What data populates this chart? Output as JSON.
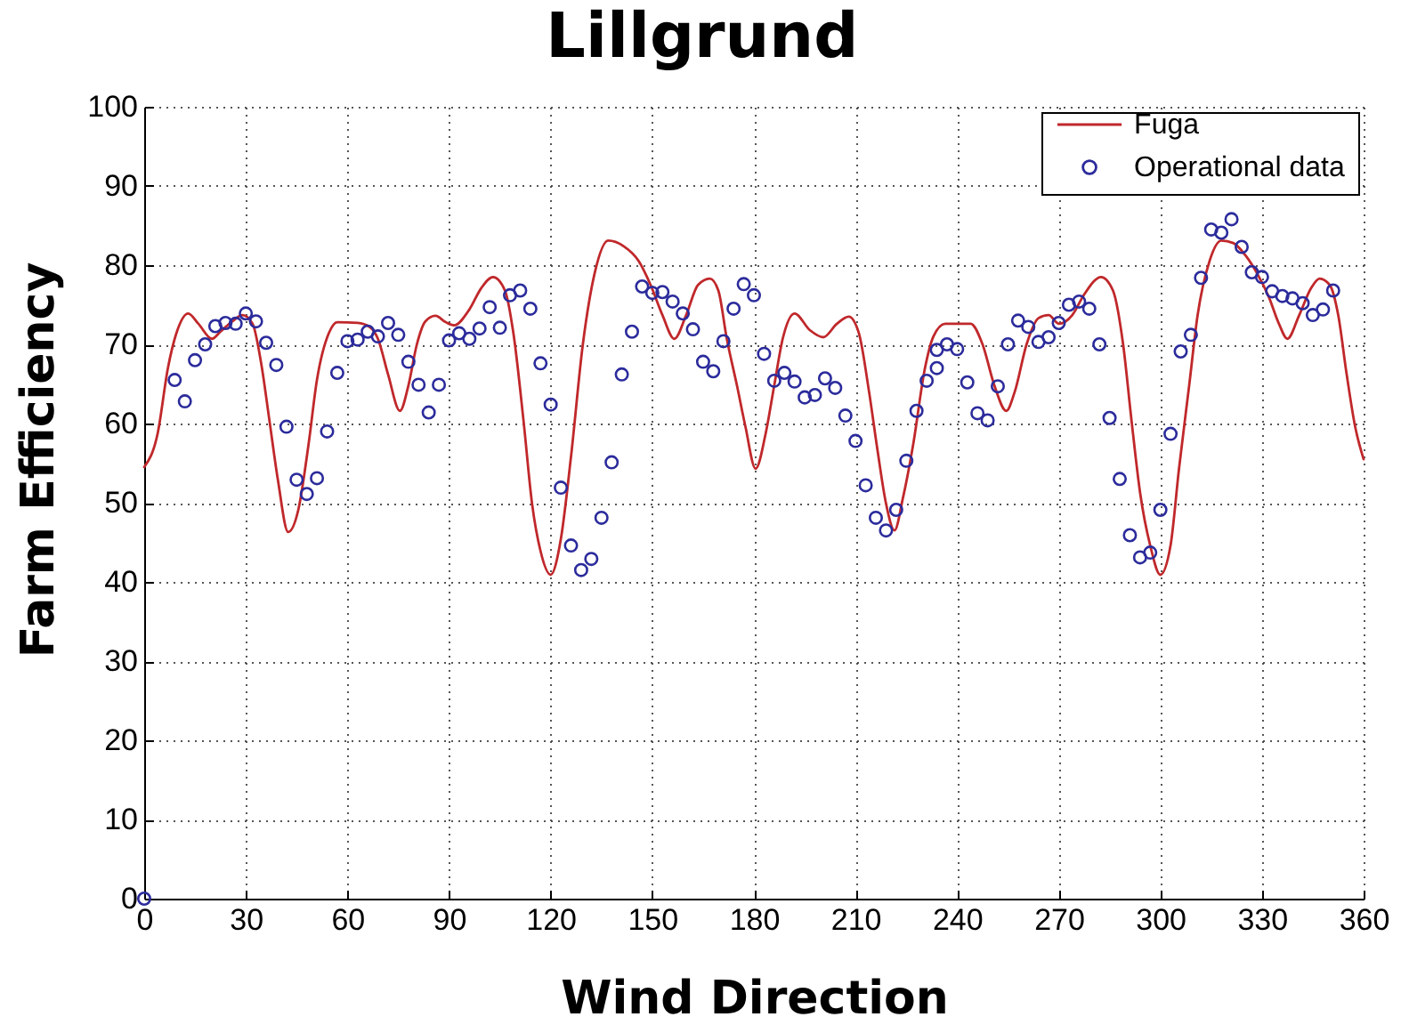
{
  "chart_data": {
    "type": "line",
    "title": "Lillgrund",
    "xlabel": "Wind Direction",
    "ylabel": "Farm Efficiency",
    "xlim": [
      0,
      360
    ],
    "xticks": [
      0,
      30,
      60,
      90,
      120,
      150,
      180,
      210,
      240,
      270,
      300,
      330,
      360
    ],
    "ylim": [
      0,
      100
    ],
    "yticks": [
      0,
      10,
      20,
      30,
      40,
      50,
      60,
      70,
      80,
      90,
      100
    ],
    "grid": true,
    "legend": "top right",
    "series": [
      {
        "name": "Fuga",
        "color": "#c0282b",
        "x": [
          0,
          4,
          7,
          9.5,
          13,
          16,
          20,
          22.5,
          26,
          29,
          32,
          34.5,
          37,
          39.5,
          42.5,
          45.5,
          48.5,
          51,
          54.5,
          57,
          63,
          66.5,
          69,
          72,
          75.5,
          78,
          80.5,
          83,
          86,
          89,
          91.5,
          96,
          99.5,
          103,
          106.5,
          109,
          112,
          114.5,
          117,
          120,
          123,
          126,
          129.5,
          133,
          137,
          141.5,
          146,
          149.5,
          153,
          156.5,
          160,
          163.5,
          167,
          169.5,
          172,
          175,
          177.5,
          180.5,
          183.5,
          186,
          188.5,
          192,
          196.5,
          200.5,
          204.5,
          208,
          211,
          214,
          216.5,
          219,
          221.5,
          224,
          227,
          230.5,
          233,
          236.5,
          240,
          244,
          247.5,
          251,
          254.5,
          257,
          260.5,
          264,
          267,
          270,
          274,
          277.5,
          282.5,
          286,
          289,
          291.5,
          294,
          297,
          300,
          303,
          305.5,
          308.5,
          311,
          314.5,
          318,
          321.5,
          325,
          328.5,
          332,
          335,
          337.5,
          341,
          344.5,
          347,
          350,
          352.5,
          355,
          357.5,
          360
        ],
        "values": [
          54.5,
          58.8,
          67,
          71.4,
          73.9,
          72.6,
          70.7,
          71.6,
          72.9,
          73.7,
          72.6,
          67.7,
          60.3,
          52.8,
          46.3,
          49.1,
          57.3,
          65.5,
          71.4,
          72.8,
          72.7,
          72.2,
          70.7,
          66.2,
          61.6,
          64.8,
          70,
          72.9,
          73.6,
          72.8,
          72.4,
          74.4,
          77.1,
          78.5,
          76.8,
          71.4,
          60.3,
          49.9,
          43.9,
          40.9,
          45.4,
          55.8,
          70,
          79,
          83.1,
          82.4,
          80.5,
          77.5,
          73.7,
          70.7,
          73.7,
          77.5,
          78.3,
          76.8,
          70.7,
          64.8,
          59.6,
          54.3,
          58.8,
          64.8,
          70.7,
          73.9,
          71.8,
          70.9,
          72.6,
          73.5,
          71.4,
          64,
          56.6,
          49.9,
          46.5,
          50.6,
          57.3,
          67,
          71,
          72.6,
          72.6,
          72.6,
          70,
          64.8,
          61.6,
          64,
          70,
          73.3,
          73.7,
          72.6,
          73.7,
          76.3,
          78.5,
          76.8,
          70,
          60.3,
          51.3,
          44.6,
          40.9,
          44.6,
          54.3,
          64.8,
          73.7,
          80.5,
          83.1,
          82.8,
          81.3,
          79,
          76,
          72.6,
          70.7,
          73.7,
          77.1,
          78.3,
          77.5,
          73.7,
          66.2,
          59.6,
          55.5
        ]
      },
      {
        "name": "Operational data",
        "type": "scatter",
        "marker": "circle",
        "color": "#2b2b9c",
        "x": [
          0,
          9,
          12,
          15,
          18,
          21,
          24,
          27,
          30,
          33,
          36,
          39,
          42,
          45,
          48,
          51,
          54,
          57,
          60,
          63,
          66,
          69,
          72,
          75,
          78,
          81,
          84,
          87,
          90,
          93,
          96,
          99,
          102,
          105,
          108,
          111,
          114,
          117,
          120,
          123,
          126,
          129,
          132,
          135,
          138,
          141,
          144,
          147,
          150,
          153,
          156,
          159,
          162,
          165,
          168,
          171,
          174,
          177,
          180,
          183,
          186,
          189,
          192,
          195,
          198,
          201,
          204,
          207,
          210,
          213,
          216,
          219,
          222,
          225,
          228,
          231,
          234,
          234,
          237,
          240,
          243,
          246,
          249,
          252,
          255,
          258,
          261,
          264,
          267,
          270,
          273,
          276,
          279,
          282,
          285,
          288,
          291,
          294,
          297,
          300,
          303,
          306,
          309,
          312,
          315,
          318,
          321,
          324,
          327,
          330,
          333,
          336,
          339,
          342,
          345,
          348,
          351
        ],
        "values": [
          0,
          65.5,
          62.8,
          68.0,
          70.0,
          72.3,
          72.7,
          72.6,
          73.9,
          72.9,
          70.2,
          67.4,
          59.6,
          52.9,
          51.1,
          53.1,
          59.0,
          66.4,
          70.4,
          70.6,
          71.6,
          71.0,
          72.7,
          71.2,
          67.8,
          64.9,
          61.4,
          64.9,
          70.5,
          71.4,
          70.7,
          72.0,
          74.7,
          72.1,
          76.2,
          76.8,
          74.5,
          67.6,
          62.4,
          51.9,
          44.6,
          41.5,
          42.9,
          48.1,
          55.1,
          66.2,
          71.6,
          77.3,
          76.5,
          76.6,
          75.4,
          73.9,
          71.9,
          67.8,
          66.6,
          70.4,
          74.5,
          77.6,
          76.2,
          68.8,
          65.4,
          66.4,
          65.3,
          63.3,
          63.6,
          65.7,
          64.5,
          61.0,
          57.8,
          52.2,
          48.1,
          46.5,
          49.1,
          55.3,
          61.6,
          65.4,
          67.0,
          69.3,
          70.0,
          69.4,
          65.2,
          61.3,
          60.4,
          64.7,
          70.0,
          73.0,
          72.2,
          70.3,
          70.9,
          72.7,
          75.0,
          75.4,
          74.5,
          70.0,
          60.7,
          53.0,
          45.9,
          43.1,
          43.7,
          49.1,
          58.7,
          69.1,
          71.2,
          78.4,
          84.5,
          84.1,
          85.8,
          82.3,
          79.1,
          78.5,
          76.7,
          76.1,
          75.8,
          75.2,
          73.7,
          74.4,
          76.8
        ]
      }
    ]
  }
}
